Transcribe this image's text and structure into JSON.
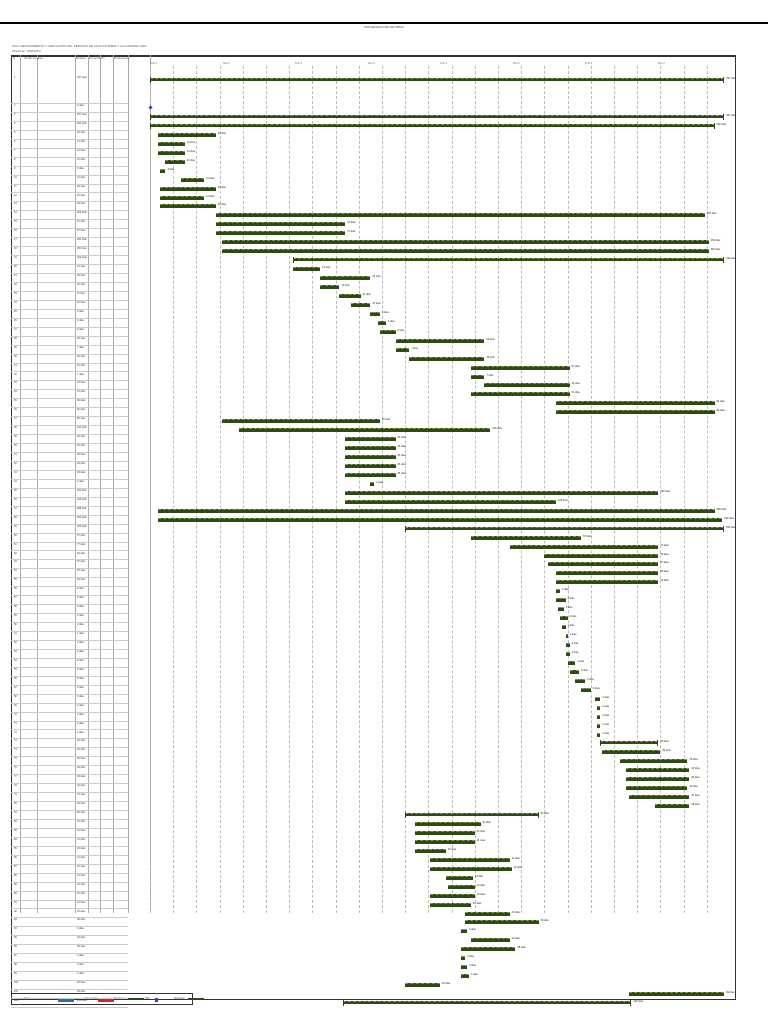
{
  "doc": {
    "title": "PROGRAMACIÓN DE OBRA",
    "meta1": "Obra: MEJORAMIENTO Y AMPLIACIÓN DEL SERVICIO DE AGUA POTABLE Y ALCANTARILLADO",
    "meta2": "Ubicación: DISTRITO"
  },
  "table_headers": [
    "Id",
    "Nombre de tarea",
    "Duración",
    "Comienzo",
    "Fin",
    "Predecesoras"
  ],
  "timeline": {
    "unit": "días",
    "ticks": [
      "Trim 1",
      "Trim 2",
      "Trim 3",
      "Trim 4",
      "Trim 1",
      "Trim 2",
      "Trim 3",
      "Trim 4"
    ]
  },
  "legend": {
    "items": [
      {
        "label": "Tarea",
        "color": "#1f6fc4"
      },
      {
        "label": "Tarea crítica",
        "color": "#e02020"
      },
      {
        "label": "Progreso",
        "color": "#2d4a12"
      },
      {
        "label": "Hito",
        "color": "#6a2bb0"
      },
      {
        "label": "Resumen",
        "color": "#2d4a12"
      }
    ]
  },
  "chart_data": {
    "type": "gantt",
    "xlim": [
      0,
      300
    ],
    "tasks": [
      [
        0,
        297,
        "s"
      ],
      [
        0,
        0,
        "m"
      ],
      [
        0,
        297,
        "s"
      ],
      [
        0,
        292,
        "s"
      ],
      [
        4,
        34,
        "t"
      ],
      [
        4,
        18,
        "t"
      ],
      [
        4,
        18,
        "t"
      ],
      [
        8,
        18,
        "t"
      ],
      [
        5,
        8,
        "t"
      ],
      [
        16,
        28,
        "t"
      ],
      [
        5,
        34,
        "t"
      ],
      [
        5,
        28,
        "t"
      ],
      [
        5,
        34,
        "t"
      ],
      [
        34,
        287,
        "t"
      ],
      [
        34,
        101,
        "t"
      ],
      [
        34,
        101,
        "t"
      ],
      [
        37,
        289,
        "t"
      ],
      [
        37,
        289,
        "t"
      ],
      [
        74,
        297,
        "s"
      ],
      [
        74,
        88,
        "t"
      ],
      [
        88,
        114,
        "t"
      ],
      [
        88,
        98,
        "t"
      ],
      [
        98,
        109,
        "t"
      ],
      [
        104,
        114,
        "t"
      ],
      [
        114,
        119,
        "t"
      ],
      [
        118,
        122,
        "t"
      ],
      [
        119,
        127,
        "t"
      ],
      [
        127,
        173,
        "t"
      ],
      [
        127,
        134,
        "t"
      ],
      [
        134,
        173,
        "t"
      ],
      [
        166,
        217,
        "t"
      ],
      [
        166,
        173,
        "t"
      ],
      [
        173,
        217,
        "t"
      ],
      [
        166,
        217,
        "t"
      ],
      [
        210,
        292,
        "t"
      ],
      [
        210,
        292,
        "t"
      ],
      [
        37,
        119,
        "t"
      ],
      [
        46,
        176,
        "t"
      ],
      [
        101,
        127,
        "t"
      ],
      [
        101,
        127,
        "t"
      ],
      [
        101,
        127,
        "t"
      ],
      [
        101,
        127,
        "t"
      ],
      [
        101,
        127,
        "t"
      ],
      [
        114,
        116,
        "t"
      ],
      [
        101,
        263,
        "t"
      ],
      [
        101,
        210,
        "t"
      ],
      [
        4,
        292,
        "t"
      ],
      [
        4,
        296,
        "t"
      ],
      [
        132,
        297,
        "s"
      ],
      [
        166,
        223,
        "t"
      ],
      [
        186,
        263,
        "t"
      ],
      [
        204,
        263,
        "t"
      ],
      [
        206,
        263,
        "t"
      ],
      [
        210,
        263,
        "t"
      ],
      [
        210,
        263,
        "t"
      ],
      [
        210,
        212,
        "t"
      ],
      [
        210,
        215,
        "t"
      ],
      [
        211,
        214,
        "t"
      ],
      [
        212,
        216,
        "t"
      ],
      [
        213,
        215,
        "t"
      ],
      [
        215,
        216,
        "t"
      ],
      [
        215,
        217,
        "t"
      ],
      [
        215,
        217,
        "t"
      ],
      [
        216,
        220,
        "t"
      ],
      [
        217,
        222,
        "t"
      ],
      [
        220,
        225,
        "t"
      ],
      [
        223,
        228,
        "t"
      ],
      [
        230,
        233,
        "t"
      ],
      [
        231,
        233,
        "t"
      ],
      [
        231,
        233,
        "t"
      ],
      [
        231,
        233,
        "t"
      ],
      [
        231,
        233,
        "t"
      ],
      [
        233,
        263,
        "s"
      ],
      [
        234,
        264,
        "t"
      ],
      [
        243,
        278,
        "t"
      ],
      [
        246,
        279,
        "t"
      ],
      [
        246,
        279,
        "t"
      ],
      [
        246,
        278,
        "t"
      ],
      [
        248,
        279,
        "t"
      ],
      [
        261,
        279,
        "t"
      ],
      [
        132,
        201,
        "s"
      ],
      [
        137,
        171,
        "t"
      ],
      [
        137,
        168,
        "t"
      ],
      [
        137,
        168,
        "t"
      ],
      [
        137,
        153,
        "t"
      ],
      [
        145,
        186,
        "t"
      ],
      [
        145,
        187,
        "t"
      ],
      [
        153,
        167,
        "t"
      ],
      [
        154,
        168,
        "t"
      ],
      [
        145,
        168,
        "t"
      ],
      [
        145,
        166,
        "t"
      ],
      [
        163,
        186,
        "t"
      ],
      [
        163,
        201,
        "t"
      ],
      [
        161,
        164,
        "t"
      ],
      [
        166,
        186,
        "t"
      ],
      [
        161,
        189,
        "t"
      ],
      [
        161,
        163,
        "t"
      ],
      [
        161,
        164,
        "t"
      ],
      [
        161,
        165,
        "t"
      ],
      [
        132,
        150,
        "t"
      ],
      [
        248,
        297,
        "t"
      ],
      [
        100,
        249,
        "s"
      ]
    ]
  }
}
